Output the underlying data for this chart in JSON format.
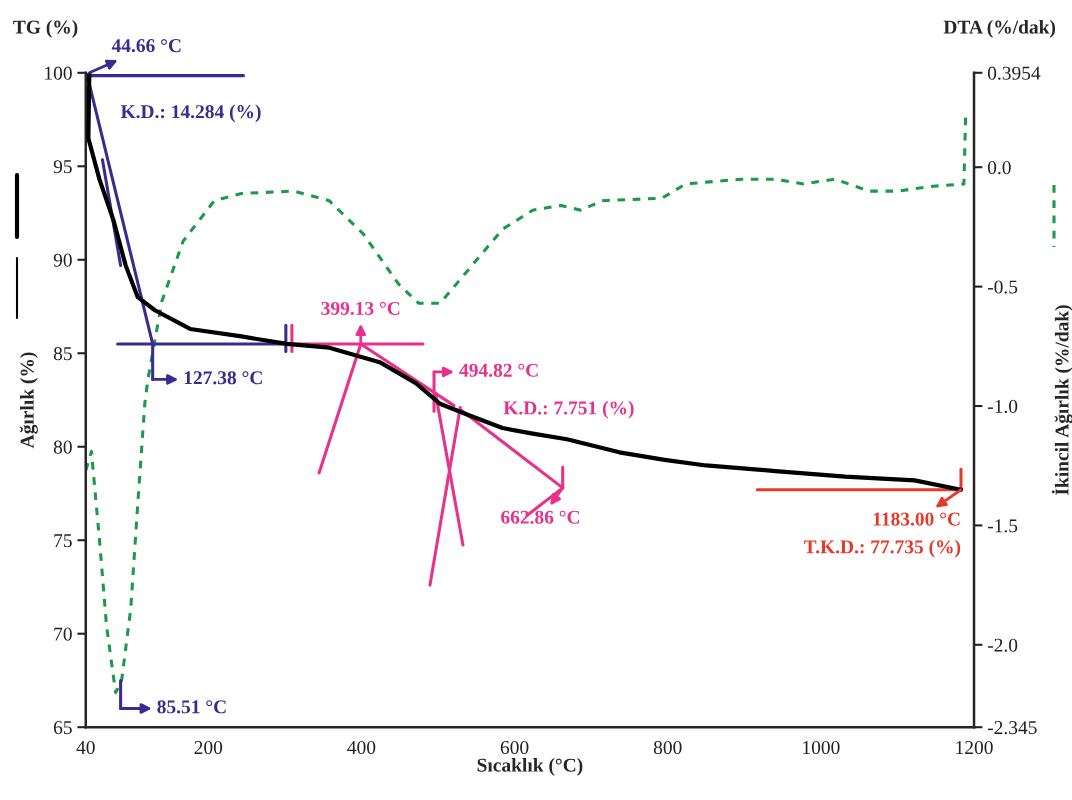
{
  "chart_data": {
    "type": "line",
    "xlabel": "Sıcaklık (°C)",
    "ylabel": "Ağırlık (%)",
    "y2label": "İkincil Ağırlık (%/dak)",
    "xlim": [
      40,
      1200
    ],
    "xticks": [
      40,
      200,
      400,
      600,
      800,
      1000,
      1200
    ],
    "ylim": [
      65,
      100
    ],
    "yticks": [
      65,
      70,
      75,
      80,
      85,
      90,
      95,
      100
    ],
    "y2lim": [
      -2.345,
      0.3954
    ],
    "y2ticks": [
      -2.345,
      {
        "value": -2,
        "label": "-2.0"
      },
      -1.5,
      {
        "value": -1,
        "label": "-1.0"
      },
      -0.5,
      {
        "value": 0,
        "label": "0.0"
      },
      0.3954
    ],
    "line_style": "solid",
    "series": [
      {
        "color": "#000000",
        "x": [
          44.66,
          43.4,
          57.9,
          76.3,
          92.1,
          107.9,
          130.3,
          176.3,
          243.4,
          302.6,
          357.9,
          425,
          471,
          502.6,
          539.5,
          584.2,
          623.7,
          668.4,
          736.8,
          796,
          850,
          940.8,
          1031.6,
          1122.4,
          1183
        ],
        "values": [
          100,
          96.5,
          94.3,
          92.1,
          89.7,
          88.0,
          87.3,
          86.3,
          85.9,
          85.5,
          85.3,
          84.5,
          83.4,
          82.3,
          81.7,
          81.0,
          80.7,
          80.4,
          79.7,
          79.3,
          79.0,
          78.7,
          78.4,
          78.2,
          77.7
        ]
      },
      {
        "axis": "y2",
        "line_style": "dashed",
        "color": "#1a9a4a",
        "x": [
          40,
          47.4,
          57.9,
          67.1,
          79,
          86.8,
          98.7,
          107.9,
          117.1,
          121.1,
          139.5,
          167.1,
          207.9,
          243.4,
          311.8,
          357.9,
          402.6,
          448.7,
          475,
          502.6,
          539.5,
          584.2,
          623.7,
          660.5,
          686.8,
          714.5,
          792.1,
          823.7,
          896,
          940.8,
          977.6,
          1018.4,
          1063,
          1100,
          1146,
          1186.8,
          1189
        ],
        "values": [
          -1.27,
          -1.19,
          -1.56,
          -1.92,
          -2.2,
          -2.15,
          -1.85,
          -1.41,
          -0.99,
          -0.89,
          -0.56,
          -0.31,
          -0.14,
          -0.11,
          -0.1,
          -0.14,
          -0.28,
          -0.49,
          -0.57,
          -0.57,
          -0.43,
          -0.26,
          -0.18,
          -0.16,
          -0.18,
          -0.14,
          -0.13,
          -0.07,
          -0.05,
          -0.05,
          -0.07,
          -0.05,
          -0.1,
          -0.1,
          -0.08,
          -0.07,
          0.21
        ]
      },
      {
        "color": "#3b2b8f",
        "x": [
          246,
          42,
          127.38,
          127.38
        ],
        "values": [
          99.85,
          99.85,
          85.5,
          83.6
        ]
      },
      {
        "color": "#3b2b8f",
        "x": [
          61.8,
          85.5
        ],
        "values": [
          95.35,
          89.7
        ]
      },
      {
        "color": "#3b2b8f",
        "x": [
          81.6,
          307.9
        ],
        "values": [
          85.5,
          85.5
        ]
      },
      {
        "color": "#3b2b8f",
        "x": [
          301.3,
          301.3
        ],
        "values": [
          86.5,
          85.1
        ]
      },
      {
        "color": "#3b2b8f",
        "x": [
          85.51,
          85.51
        ],
        "values": [
          67.5,
          66.0
        ]
      },
      {
        "color": "#e8318a",
        "x": [
          309.2,
          309.2
        ],
        "values": [
          86.5,
          85.1
        ]
      },
      {
        "color": "#e8318a",
        "x": [
          309.2,
          480.3
        ],
        "values": [
          85.5,
          85.5
        ]
      },
      {
        "color": "#e8318a",
        "x": [
          344.7,
          399.13,
          521
        ],
        "values": [
          78.6,
          85.5,
          82.2
        ]
      },
      {
        "color": "#e8318a",
        "x": [
          494.82,
          494.82
        ],
        "values": [
          84.0,
          81.9
        ]
      },
      {
        "color": "#e8318a",
        "x": [
          489.5,
          529
        ],
        "values": [
          72.6,
          82.1
        ]
      },
      {
        "color": "#e8318a",
        "x": [
          497,
          532.6
        ],
        "values": [
          82.8,
          74.75
        ]
      },
      {
        "color": "#e8318a",
        "x": [
          529,
          662.86
        ],
        "values": [
          82.0,
          77.8
        ]
      },
      {
        "color": "#e8318a",
        "x": [
          617,
          662.86
        ],
        "values": [
          76.35,
          77.8
        ]
      },
      {
        "color": "#e8318a",
        "x": [
          662.86,
          662.86
        ],
        "values": [
          78.9,
          77.8
        ]
      },
      {
        "color": "#e53a2b",
        "x": [
          917,
          1183
        ],
        "values": [
          77.7,
          77.7
        ]
      },
      {
        "color": "#e53a2b",
        "x": [
          1183,
          1183
        ],
        "values": [
          78.8,
          77.7
        ]
      }
    ],
    "annotations": [
      "TG (%)",
      "DTA (%/dak)",
      {
        "text": "44.66 °C",
        "x": 44.66,
        "y": 100
      },
      {
        "text": "K.D.: 14.284 (%)",
        "x": 60,
        "y": 96.94
      },
      {
        "text": "127.38 °C",
        "x": 127.38,
        "y": 83.6
      },
      {
        "text": "85.51 °C",
        "x": 85.51,
        "y": 66.0
      },
      {
        "text": "399.13 °C",
        "x": 399.13,
        "y": 85.5
      },
      {
        "text": "494.82 °C",
        "x": 494.82,
        "y": 84.0
      },
      {
        "text": "K.D.: 7.751 (%)",
        "x": 581.6,
        "y": 80.35
      },
      {
        "text": "662.86 °C",
        "x": 662.86,
        "y": 77.8
      },
      {
        "text": "1183.00 °C",
        "x": 1183,
        "y": 77.7
      },
      {
        "text": "T.K.D.: 77.735 (%)",
        "x": 1183,
        "y": 77.7
      }
    ]
  }
}
